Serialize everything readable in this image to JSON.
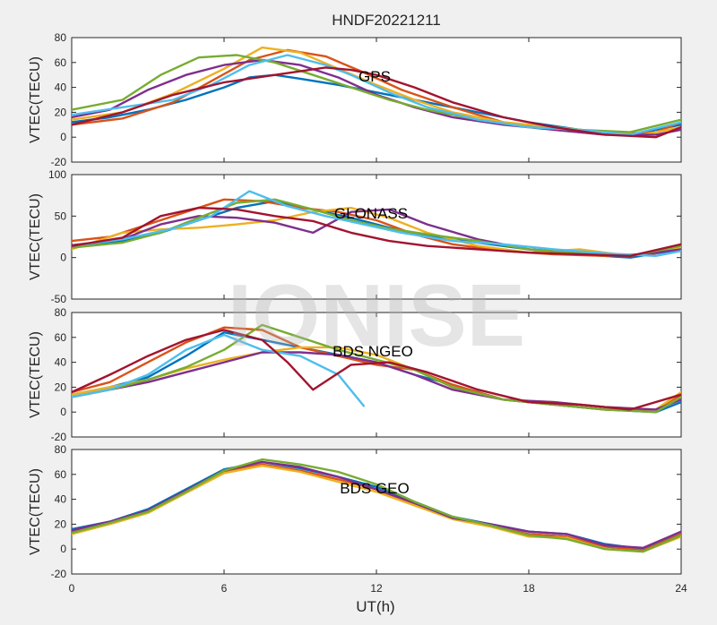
{
  "figure": {
    "title": "HNDF20221211",
    "xlabel": "UT(h)",
    "watermark": "IONISE",
    "xlim": [
      0,
      24
    ],
    "xticks": [
      0,
      6,
      12,
      18,
      24
    ],
    "colors": [
      "#0072bd",
      "#d95319",
      "#edb120",
      "#7e2f8e",
      "#77ac30",
      "#4dbeee",
      "#a2142f"
    ]
  },
  "chart_data": [
    {
      "type": "line",
      "title": "",
      "label": "GPS",
      "ylabel": "VTEC(TECU)",
      "ylim": [
        -20,
        80
      ],
      "yticks": [
        -20,
        0,
        20,
        40,
        60,
        80
      ],
      "series": [
        {
          "x": [
            0,
            1.5,
            3,
            4.5,
            6,
            7,
            8,
            9,
            10.5,
            12,
            14,
            16,
            18,
            20,
            22,
            24
          ],
          "y": [
            12,
            16,
            22,
            30,
            40,
            48,
            50,
            47,
            42,
            36,
            28,
            20,
            12,
            6,
            2,
            10
          ]
        },
        {
          "x": [
            0,
            2,
            4,
            5.5,
            7,
            8.5,
            10,
            11.5,
            13,
            15,
            17,
            19,
            21,
            23,
            24
          ],
          "y": [
            10,
            15,
            28,
            45,
            62,
            70,
            65,
            52,
            38,
            24,
            12,
            6,
            2,
            4,
            12
          ]
        },
        {
          "x": [
            0,
            2,
            4,
            6,
            7.5,
            9,
            10.5,
            12,
            13.5,
            15,
            17,
            19,
            21,
            22.5,
            24
          ],
          "y": [
            14,
            20,
            35,
            55,
            72,
            68,
            55,
            42,
            30,
            20,
            12,
            8,
            4,
            2,
            8
          ]
        },
        {
          "x": [
            0,
            1.5,
            3,
            4.5,
            6,
            7.5,
            9,
            10.5,
            12,
            13.5,
            15,
            17,
            19,
            21,
            23,
            24
          ],
          "y": [
            16,
            22,
            38,
            50,
            58,
            62,
            58,
            48,
            34,
            24,
            16,
            10,
            6,
            2,
            2,
            6
          ]
        },
        {
          "x": [
            0,
            2,
            3.5,
            5,
            6.5,
            8,
            9.5,
            11,
            12.5,
            14,
            16,
            18,
            20,
            22,
            24
          ],
          "y": [
            22,
            30,
            50,
            64,
            66,
            60,
            50,
            40,
            30,
            22,
            14,
            8,
            6,
            4,
            14
          ]
        },
        {
          "x": [
            0,
            2,
            4,
            5.5,
            7,
            8.5,
            10,
            11,
            12.5,
            14,
            16,
            18,
            20,
            22,
            24
          ],
          "y": [
            18,
            24,
            30,
            42,
            58,
            66,
            58,
            50,
            36,
            24,
            14,
            8,
            6,
            2,
            12
          ]
        },
        {
          "x": [
            0,
            2,
            4,
            6,
            8,
            10,
            11,
            12,
            13.5,
            15,
            17,
            19,
            21,
            23,
            24
          ],
          "y": [
            10,
            20,
            34,
            44,
            50,
            56,
            54,
            50,
            40,
            28,
            16,
            8,
            2,
            0,
            8
          ]
        }
      ]
    },
    {
      "type": "line",
      "title": "",
      "label": "GLONASS",
      "ylabel": "VTEC(TECU)",
      "ylim": [
        -50,
        100
      ],
      "yticks": [
        -50,
        0,
        50,
        100
      ],
      "series": [
        {
          "x": [
            0,
            2,
            3.5,
            5,
            6.5,
            8,
            9.5,
            11,
            12.5,
            14,
            16,
            18,
            20,
            22,
            24
          ],
          "y": [
            12,
            20,
            30,
            45,
            60,
            68,
            58,
            48,
            36,
            26,
            18,
            10,
            4,
            0,
            10
          ]
        },
        {
          "x": [
            0,
            1.5,
            3,
            4.5,
            6,
            7.5,
            9,
            10.5,
            12,
            13.5,
            15,
            17,
            19,
            21,
            23,
            24
          ],
          "y": [
            20,
            25,
            40,
            55,
            70,
            68,
            60,
            55,
            45,
            28,
            16,
            8,
            4,
            2,
            5,
            15
          ]
        },
        {
          "x": [
            0,
            2,
            3.5,
            5,
            6.5,
            8,
            9.5,
            11,
            12.5,
            14,
            16,
            18,
            20,
            22,
            24
          ],
          "y": [
            10,
            30,
            34,
            36,
            40,
            45,
            55,
            60,
            48,
            30,
            14,
            6,
            10,
            2,
            12
          ]
        },
        {
          "x": [
            0,
            2,
            3.5,
            5,
            6.5,
            8,
            9.5,
            11,
            12.5,
            14,
            16,
            18,
            20,
            22,
            24
          ],
          "y": [
            15,
            22,
            40,
            50,
            48,
            42,
            30,
            55,
            58,
            40,
            22,
            10,
            6,
            2,
            10
          ]
        },
        {
          "x": [
            0,
            2,
            3.5,
            5,
            6.5,
            8,
            9.5,
            11,
            12.5,
            14,
            16,
            18,
            20,
            22,
            24
          ],
          "y": [
            12,
            18,
            30,
            48,
            66,
            70,
            58,
            45,
            35,
            28,
            20,
            10,
            5,
            2,
            14
          ]
        },
        {
          "x": [
            0,
            2,
            4,
            5.5,
            7,
            8.5,
            10,
            11.5,
            13,
            15,
            17,
            19,
            21,
            23,
            24
          ],
          "y": [
            14,
            22,
            35,
            50,
            80,
            62,
            50,
            40,
            30,
            20,
            16,
            10,
            5,
            2,
            8
          ]
        },
        {
          "x": [
            0,
            2,
            3.5,
            5,
            6.5,
            8,
            9.5,
            11,
            12.5,
            14,
            16,
            18,
            20,
            22,
            24
          ],
          "y": [
            14,
            24,
            50,
            60,
            58,
            50,
            44,
            30,
            20,
            14,
            10,
            6,
            4,
            2,
            16
          ]
        }
      ]
    },
    {
      "type": "line",
      "title": "",
      "label": "BDS NGEO",
      "ylabel": "VTEC(TECU)",
      "ylim": [
        -20,
        80
      ],
      "yticks": [
        -20,
        0,
        20,
        40,
        60,
        80
      ],
      "series": [
        {
          "x": [
            0,
            1.5,
            3,
            4.5,
            6,
            7.5,
            9,
            10.5,
            12,
            13.5,
            15,
            17,
            19,
            21,
            23,
            24
          ],
          "y": [
            14,
            20,
            28,
            45,
            64,
            58,
            52,
            46,
            40,
            30,
            22,
            10,
            6,
            2,
            0,
            8
          ]
        },
        {
          "x": [
            0,
            1.5,
            3,
            4.5,
            6,
            7.5,
            9,
            10.5,
            12,
            13.5,
            15,
            17,
            19,
            21,
            23,
            24
          ],
          "y": [
            16,
            24,
            40,
            56,
            68,
            66,
            52,
            45,
            38,
            34,
            22,
            10,
            6,
            2,
            2,
            14
          ]
        },
        {
          "x": [
            0,
            1.5,
            3,
            4.5,
            6,
            7.5,
            9,
            10.5,
            12,
            13.5,
            15,
            17,
            19,
            21,
            23,
            24
          ],
          "y": [
            14,
            20,
            26,
            35,
            42,
            48,
            52,
            52,
            46,
            34,
            20,
            10,
            8,
            4,
            2,
            16
          ]
        },
        {
          "x": [
            0,
            1.5,
            3,
            4.5,
            6,
            7.5,
            9,
            10.5,
            12,
            13.5,
            15,
            17,
            19,
            21,
            23,
            24
          ],
          "y": [
            12,
            18,
            24,
            32,
            40,
            48,
            48,
            46,
            40,
            30,
            18,
            10,
            8,
            4,
            2,
            10
          ]
        },
        {
          "x": [
            0,
            1.5,
            3,
            4.5,
            6,
            7.5,
            9,
            10.5,
            12,
            13.5,
            15,
            17,
            19,
            21,
            23,
            24
          ],
          "y": [
            12,
            18,
            26,
            36,
            50,
            70,
            60,
            50,
            42,
            34,
            20,
            10,
            6,
            2,
            0,
            12
          ]
        },
        {
          "x": [
            0,
            1.5,
            3,
            4.5,
            6,
            7.5,
            9,
            10.5,
            11.5
          ],
          "y": [
            12,
            18,
            30,
            50,
            62,
            50,
            45,
            30,
            5
          ]
        },
        {
          "x": [
            0,
            1.5,
            3,
            4.5,
            6,
            7.5,
            8.5,
            9.5,
            11,
            12.5,
            14,
            16,
            18,
            20,
            22,
            24
          ],
          "y": [
            16,
            30,
            45,
            58,
            66,
            58,
            40,
            18,
            38,
            40,
            32,
            18,
            8,
            6,
            2,
            14
          ]
        }
      ]
    },
    {
      "type": "line",
      "title": "",
      "label": "BDS GEO",
      "ylabel": "VTEC(TECU)",
      "ylim": [
        -20,
        80
      ],
      "yticks": [
        -20,
        0,
        20,
        40,
        60,
        80
      ],
      "series": [
        {
          "x": [
            0,
            1.5,
            3,
            4.5,
            6,
            7.5,
            9,
            10.5,
            12,
            13.5,
            15,
            16.5,
            18,
            19.5,
            21,
            22.5,
            24
          ],
          "y": [
            16,
            22,
            32,
            48,
            64,
            70,
            65,
            58,
            50,
            38,
            26,
            20,
            14,
            12,
            4,
            0,
            14
          ]
        },
        {
          "x": [
            0,
            1.5,
            3,
            4.5,
            6,
            7.5,
            9,
            10.5,
            12,
            13.5,
            15,
            16.5,
            18,
            19.5,
            21,
            22.5,
            24
          ],
          "y": [
            14,
            21,
            30,
            46,
            62,
            68,
            63,
            56,
            48,
            36,
            25,
            19,
            12,
            10,
            2,
            -1,
            12
          ]
        },
        {
          "x": [
            0,
            1.5,
            3,
            4.5,
            6,
            7.5,
            9,
            10.5,
            12,
            13.5,
            15,
            16.5,
            18,
            19.5,
            21,
            22.5,
            24
          ],
          "y": [
            12,
            20,
            29,
            45,
            61,
            67,
            62,
            54,
            46,
            35,
            24,
            18,
            10,
            9,
            0,
            -2,
            10
          ]
        },
        {
          "x": [
            0,
            1.5,
            3,
            4.5,
            6,
            7.5,
            9,
            10.5,
            12,
            13.5,
            15,
            16.5,
            18,
            19.5,
            21,
            22.5,
            24
          ],
          "y": [
            15,
            22,
            31,
            47,
            63,
            70,
            66,
            58,
            48,
            37,
            25,
            20,
            14,
            12,
            3,
            1,
            14
          ]
        },
        {
          "x": [
            0,
            1.5,
            3,
            4.5,
            6,
            7.5,
            9,
            10.5,
            12,
            13.5,
            15,
            16.5,
            18,
            19.5,
            21,
            22.5,
            24
          ],
          "y": [
            13,
            21,
            30,
            46,
            63,
            72,
            68,
            62,
            52,
            38,
            26,
            19,
            11,
            8,
            0,
            -2,
            11
          ]
        }
      ]
    }
  ]
}
